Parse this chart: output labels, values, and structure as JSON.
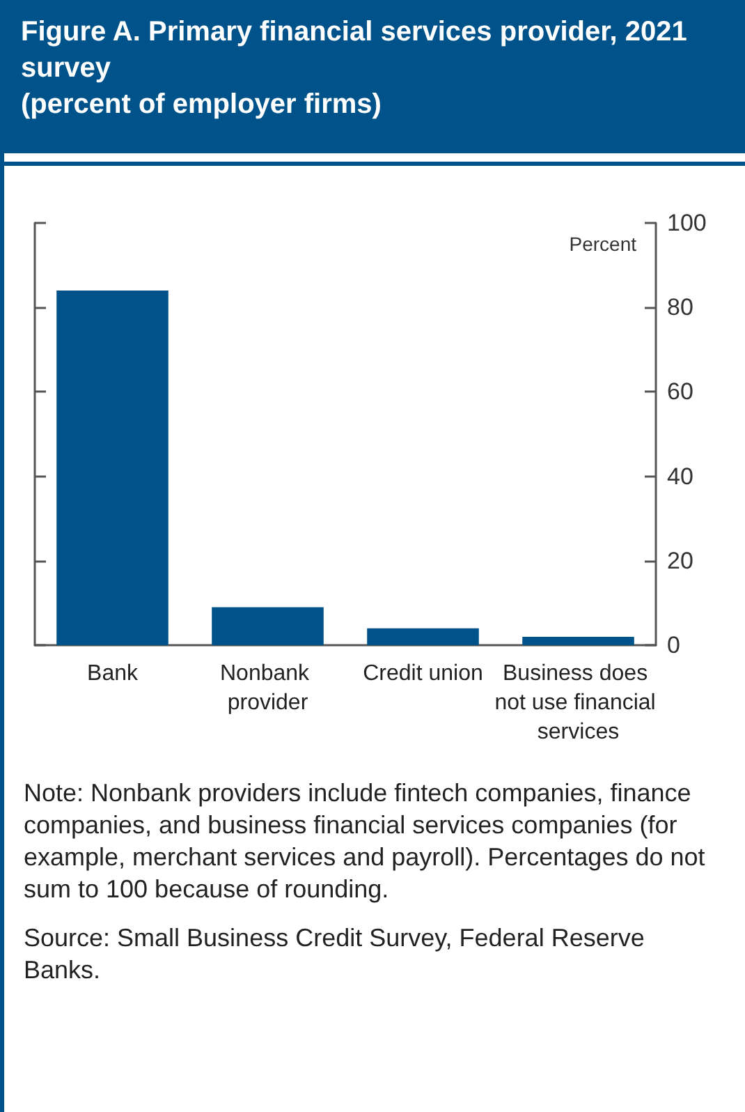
{
  "chart_data": {
    "type": "bar",
    "title": "Figure A. Primary financial services provider, 2021 survey",
    "subtitle": "(percent of employer firms)",
    "ylabel": "Percent",
    "categories": [
      "Bank",
      "Nonbank provider",
      "Credit union",
      "Business does not use financial services"
    ],
    "values": [
      84,
      9,
      4,
      2
    ],
    "color": "#00538a",
    "ylim": [
      0,
      100
    ],
    "yticks": [
      0,
      20,
      40,
      60,
      80,
      100
    ],
    "grid": false,
    "annotations": [
      "Note: Nonbank providers include fintech companies, finance companies, and business financial services companies (for example, merchant services and payroll). Percentages do not sum to 100 because of rounding.",
      "Source: Small Business Credit Survey, Federal Reserve Banks."
    ]
  }
}
